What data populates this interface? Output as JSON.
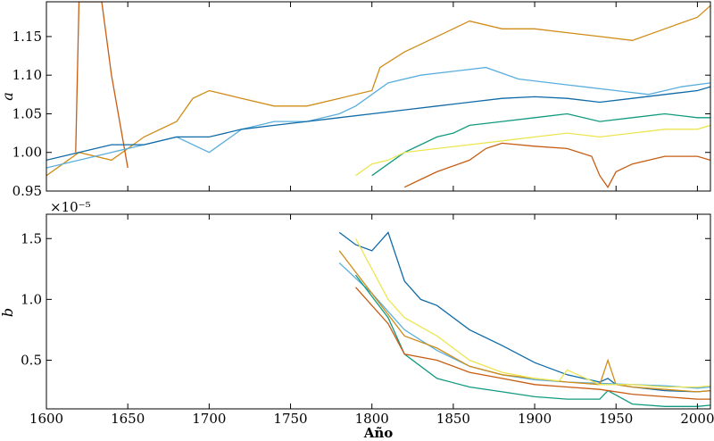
{
  "chart_data": [
    {
      "type": "line",
      "ylabel": "a",
      "xlim": [
        1600,
        2008
      ],
      "ylim": [
        0.95,
        1.195
      ],
      "yticks": [
        "0.95",
        "1.00",
        "1.05",
        "1.10",
        "1.15"
      ],
      "xticks": [],
      "grid": false,
      "series": [
        {
          "color": "#d08c18",
          "x": [
            1600,
            1620,
            1640,
            1660,
            1680,
            1690,
            1700,
            1720,
            1740,
            1760,
            1780,
            1800,
            1805,
            1820,
            1840,
            1860,
            1880,
            1900,
            1920,
            1940,
            1960,
            1980,
            2000,
            2008
          ],
          "y": [
            0.97,
            1.0,
            0.99,
            1.02,
            1.04,
            1.07,
            1.08,
            1.07,
            1.06,
            1.06,
            1.07,
            1.08,
            1.11,
            1.13,
            1.15,
            1.17,
            1.16,
            1.16,
            1.155,
            1.15,
            1.145,
            1.16,
            1.175,
            1.19
          ]
        },
        {
          "color": "#c75c12",
          "x": [
            1618,
            1620,
            1624,
            1634,
            1640,
            1650
          ],
          "y": [
            1.0,
            1.195,
            1.195,
            1.195,
            1.1,
            0.98
          ]
        },
        {
          "color": "#c75c12",
          "x": [
            1820,
            1830,
            1840,
            1860,
            1870,
            1880,
            1900,
            1920,
            1935,
            1940,
            1945,
            1950,
            1960,
            1980,
            2000,
            2008
          ],
          "y": [
            0.955,
            0.965,
            0.975,
            0.99,
            1.005,
            1.012,
            1.008,
            1.005,
            0.995,
            0.97,
            0.955,
            0.975,
            0.985,
            0.995,
            0.995,
            0.99
          ]
        },
        {
          "color": "#5aaede",
          "x": [
            1600,
            1640,
            1660,
            1680,
            1700,
            1720,
            1740,
            1760,
            1780,
            1790,
            1800,
            1810,
            1830,
            1850,
            1870,
            1890,
            1910,
            1930,
            1950,
            1970,
            1990,
            2008
          ],
          "y": [
            0.98,
            1.0,
            1.01,
            1.02,
            1.0,
            1.03,
            1.04,
            1.04,
            1.05,
            1.06,
            1.075,
            1.09,
            1.1,
            1.105,
            1.11,
            1.095,
            1.09,
            1.085,
            1.08,
            1.075,
            1.085,
            1.09
          ]
        },
        {
          "color": "#0f6aa6",
          "x": [
            1600,
            1620,
            1640,
            1660,
            1680,
            1700,
            1720,
            1740,
            1760,
            1780,
            1800,
            1820,
            1840,
            1860,
            1880,
            1900,
            1920,
            1940,
            1960,
            1980,
            2000,
            2008
          ],
          "y": [
            0.99,
            1.0,
            1.01,
            1.01,
            1.02,
            1.02,
            1.03,
            1.035,
            1.04,
            1.045,
            1.05,
            1.055,
            1.06,
            1.065,
            1.07,
            1.072,
            1.07,
            1.065,
            1.07,
            1.075,
            1.08,
            1.085
          ]
        },
        {
          "color": "#129a80",
          "x": [
            1800,
            1810,
            1820,
            1830,
            1840,
            1850,
            1860,
            1880,
            1900,
            1920,
            1940,
            1960,
            1980,
            2000,
            2008
          ],
          "y": [
            0.97,
            0.985,
            1.0,
            1.01,
            1.02,
            1.025,
            1.035,
            1.04,
            1.045,
            1.05,
            1.04,
            1.045,
            1.05,
            1.045,
            1.045
          ]
        },
        {
          "color": "#ece552",
          "x": [
            1790,
            1800,
            1810,
            1820,
            1840,
            1860,
            1880,
            1900,
            1920,
            1940,
            1960,
            1980,
            2000,
            2008
          ],
          "y": [
            0.97,
            0.985,
            0.99,
            1.0,
            1.005,
            1.01,
            1.015,
            1.02,
            1.025,
            1.02,
            1.025,
            1.03,
            1.03,
            1.035
          ]
        }
      ]
    },
    {
      "type": "line",
      "ylabel": "b",
      "scale_label": "×10⁻⁵",
      "xlabel": "Año",
      "xlim": [
        1600,
        2008
      ],
      "ylim": [
        0.1,
        1.7
      ],
      "yticks": [
        "0.5",
        "1.0",
        "1.5"
      ],
      "xticks": [
        "1600",
        "1650",
        "1700",
        "1750",
        "1800",
        "1850",
        "1900",
        "1950",
        "2000"
      ],
      "grid": false,
      "series": [
        {
          "color": "#0f6aa6",
          "x": [
            1780,
            1790,
            1800,
            1810,
            1820,
            1830,
            1840,
            1860,
            1880,
            1900,
            1920,
            1940,
            1945,
            1950,
            1960,
            1980,
            2000,
            2008
          ],
          "y": [
            1.55,
            1.45,
            1.4,
            1.55,
            1.15,
            1.0,
            0.95,
            0.75,
            0.62,
            0.48,
            0.38,
            0.32,
            0.35,
            0.3,
            0.28,
            0.25,
            0.24,
            0.25
          ]
        },
        {
          "color": "#5aaede",
          "x": [
            1780,
            1800,
            1820,
            1840,
            1860,
            1880,
            1900,
            1920,
            1940,
            1960,
            1980,
            2000,
            2008
          ],
          "y": [
            1.3,
            1.05,
            0.75,
            0.58,
            0.45,
            0.38,
            0.34,
            0.32,
            0.31,
            0.3,
            0.29,
            0.27,
            0.28
          ]
        },
        {
          "color": "#d08c18",
          "x": [
            1780,
            1800,
            1820,
            1840,
            1860,
            1880,
            1900,
            1920,
            1940,
            1945,
            1950,
            1960,
            1980,
            2000,
            2008
          ],
          "y": [
            1.4,
            1.05,
            0.7,
            0.6,
            0.45,
            0.38,
            0.35,
            0.32,
            0.3,
            0.5,
            0.3,
            0.28,
            0.26,
            0.24,
            0.25
          ]
        },
        {
          "color": "#ece552",
          "x": [
            1790,
            1810,
            1820,
            1840,
            1860,
            1880,
            1900,
            1915,
            1920,
            1940,
            1960,
            1980,
            2000,
            2008
          ],
          "y": [
            1.5,
            1.0,
            0.85,
            0.7,
            0.5,
            0.4,
            0.35,
            0.33,
            0.42,
            0.3,
            0.3,
            0.28,
            0.28,
            0.29
          ]
        },
        {
          "color": "#129a80",
          "x": [
            1790,
            1810,
            1820,
            1840,
            1860,
            1880,
            1900,
            1920,
            1940,
            1945,
            1960,
            1980,
            2000,
            2008
          ],
          "y": [
            1.2,
            0.85,
            0.55,
            0.35,
            0.28,
            0.24,
            0.2,
            0.18,
            0.18,
            0.25,
            0.14,
            0.12,
            0.12,
            0.13
          ]
        },
        {
          "color": "#c75c12",
          "x": [
            1790,
            1810,
            1820,
            1840,
            1860,
            1880,
            1900,
            1920,
            1940,
            1960,
            1980,
            2000,
            2008
          ],
          "y": [
            1.1,
            0.8,
            0.55,
            0.5,
            0.4,
            0.35,
            0.3,
            0.28,
            0.26,
            0.22,
            0.2,
            0.18,
            0.18
          ]
        }
      ]
    }
  ]
}
